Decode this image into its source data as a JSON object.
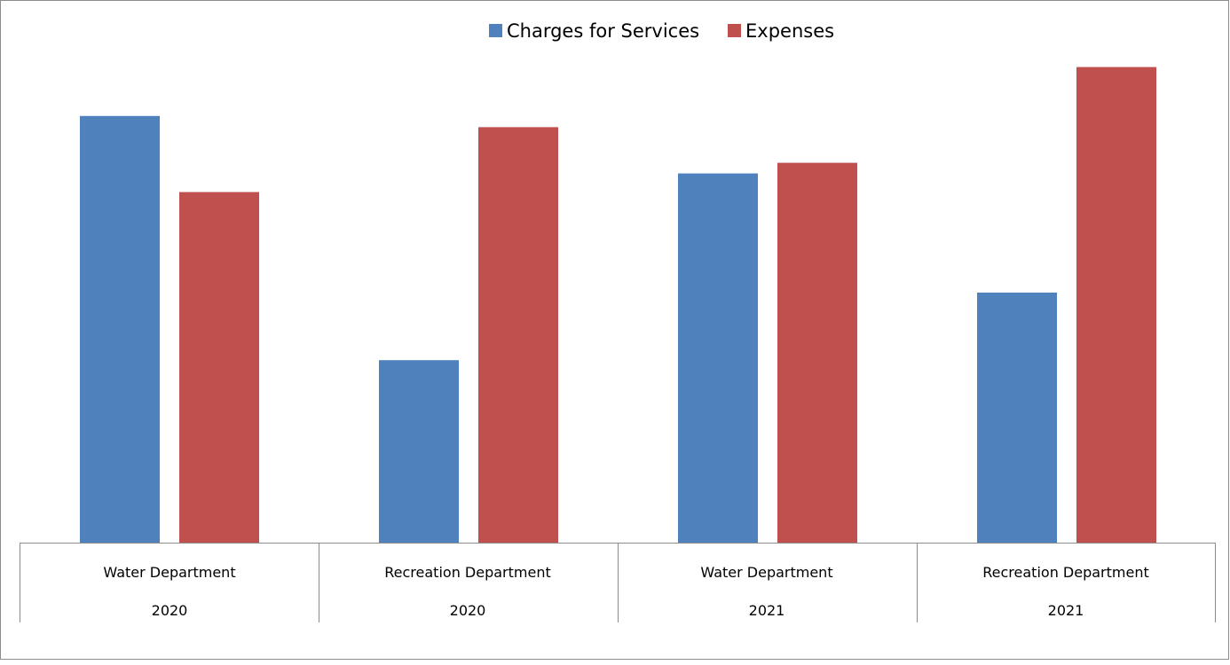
{
  "chart_data": {
    "type": "bar",
    "title": "",
    "xlabel": "",
    "ylabel": "",
    "ylim": [
      0,
      100
    ],
    "grid": false,
    "legend_position": "top-center",
    "categories": [
      {
        "department": "Water Department",
        "year": "2020"
      },
      {
        "department": "Recreation Department",
        "year": "2020"
      },
      {
        "department": "Water Department",
        "year": "2021"
      },
      {
        "department": "Recreation Department",
        "year": "2021"
      }
    ],
    "series": [
      {
        "name": "Charges for Services",
        "color": "#4f81bd",
        "values": [
          80.2,
          34.3,
          69.4,
          47.0
        ]
      },
      {
        "name": "Expenses",
        "color": "#c0504d",
        "values": [
          65.9,
          78.1,
          71.4,
          89.4
        ]
      }
    ]
  }
}
